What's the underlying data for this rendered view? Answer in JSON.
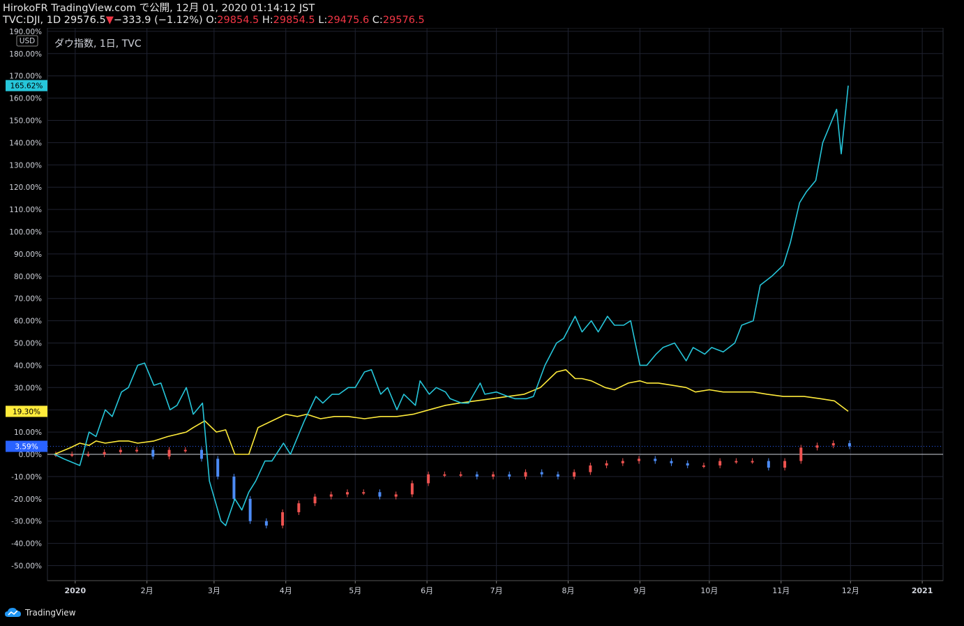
{
  "header": {
    "line1": "HirokoFR TradingView.com で公開, 12月 01, 2020 01:14:12 JST",
    "symbol_line": "TVC:DJI, 1D 29576.5",
    "change_arrow": "▼",
    "change": "−333.9 (−1.12%)",
    "o_label": " O:",
    "o_value": "29854.5",
    "h_label": " H:",
    "h_value": "29854.5",
    "l_label": " L:",
    "l_value": "29475.6",
    "c_label": " C:",
    "c_value": "29576.5"
  },
  "brand": {
    "name": "TradingView",
    "icon": "tradingview-cloud-icon"
  },
  "chart_data": {
    "type": "line",
    "title": "ダウ指数, 1日, TVC",
    "currency": "USD",
    "ylim": [
      -60,
      190
    ],
    "yunit": "%",
    "yticks": [
      190,
      180,
      170,
      160,
      150,
      140,
      130,
      120,
      110,
      100,
      90,
      80,
      70,
      60,
      50,
      40,
      30,
      20,
      10,
      0,
      -10,
      -20,
      -30,
      -40,
      -50
    ],
    "ytick_labels": [
      "190.00%",
      "180.00%",
      "170.00%",
      "160.00%",
      "150.00%",
      "140.00%",
      "130.00%",
      "120.00%",
      "110.00%",
      "100.00%",
      "90.00%",
      "80.00%",
      "70.00%",
      "60.00%",
      "50.00%",
      "40.00%",
      "30.00%",
      "20.00%",
      "10.00%",
      "0.00%",
      "-10.00%",
      "-20.00%",
      "-30.00%",
      "-40.00%",
      "-50.00%"
    ],
    "xlim": [
      "2019-12-20",
      "2021-01-10"
    ],
    "xticks": [
      {
        "date": "2020-01-01",
        "label": "2020"
      },
      {
        "date": "2020-02-01",
        "label": "2月"
      },
      {
        "date": "2020-03-01",
        "label": "3月"
      },
      {
        "date": "2020-04-01",
        "label": "4月"
      },
      {
        "date": "2020-05-01",
        "label": "5月"
      },
      {
        "date": "2020-06-01",
        "label": "6月"
      },
      {
        "date": "2020-07-01",
        "label": "7月"
      },
      {
        "date": "2020-08-01",
        "label": "8月"
      },
      {
        "date": "2020-09-01",
        "label": "9月"
      },
      {
        "date": "2020-10-01",
        "label": "10月"
      },
      {
        "date": "2020-11-01",
        "label": "11月"
      },
      {
        "date": "2020-12-01",
        "label": "12月"
      },
      {
        "date": "2021-01-01",
        "label": "2021"
      }
    ],
    "grid": true,
    "zero_line": true,
    "price_labels": [
      {
        "value": 165.62,
        "label": "165.62%",
        "color": "#26c6da"
      },
      {
        "value": 19.3,
        "label": "19.30%",
        "color": "#ffeb3b"
      },
      {
        "value": 3.59,
        "label": "3.59%",
        "color": "#2962ff"
      }
    ],
    "series": [
      {
        "type": "line",
        "color": "#26c6da",
        "x": [
          "2019-12-23",
          "2019-12-27",
          "2020-01-03",
          "2020-01-07",
          "2020-01-10",
          "2020-01-14",
          "2020-01-17",
          "2020-01-21",
          "2020-01-24",
          "2020-01-28",
          "2020-01-31",
          "2020-02-04",
          "2020-02-07",
          "2020-02-11",
          "2020-02-14",
          "2020-02-18",
          "2020-02-21",
          "2020-02-25",
          "2020-02-28",
          "2020-03-04",
          "2020-03-06",
          "2020-03-10",
          "2020-03-13",
          "2020-03-16",
          "2020-03-19",
          "2020-03-23",
          "2020-03-26",
          "2020-03-31",
          "2020-04-03",
          "2020-04-07",
          "2020-04-09",
          "2020-04-14",
          "2020-04-17",
          "2020-04-21",
          "2020-04-24",
          "2020-04-28",
          "2020-05-01",
          "2020-05-05",
          "2020-05-08",
          "2020-05-12",
          "2020-05-15",
          "2020-05-19",
          "2020-05-22",
          "2020-05-27",
          "2020-05-29",
          "2020-06-02",
          "2020-06-05",
          "2020-06-09",
          "2020-06-11",
          "2020-06-16",
          "2020-06-19",
          "2020-06-24",
          "2020-06-26",
          "2020-07-01",
          "2020-07-06",
          "2020-07-09",
          "2020-07-14",
          "2020-07-17",
          "2020-07-22",
          "2020-07-27",
          "2020-07-30",
          "2020-08-04",
          "2020-08-07",
          "2020-08-11",
          "2020-08-14",
          "2020-08-18",
          "2020-08-21",
          "2020-08-25",
          "2020-08-28",
          "2020-09-01",
          "2020-09-04",
          "2020-09-08",
          "2020-09-11",
          "2020-09-16",
          "2020-09-21",
          "2020-09-24",
          "2020-09-29",
          "2020-10-02",
          "2020-10-07",
          "2020-10-12",
          "2020-10-15",
          "2020-10-20",
          "2020-10-23",
          "2020-10-28",
          "2020-11-02",
          "2020-11-05",
          "2020-11-09",
          "2020-11-12",
          "2020-11-16",
          "2020-11-19",
          "2020-11-23",
          "2020-11-25",
          "2020-11-27",
          "2020-11-30"
        ],
        "y": [
          0,
          -2,
          -5,
          10,
          8,
          20,
          17,
          28,
          30,
          40,
          41,
          31,
          32,
          20,
          22,
          30,
          18,
          23,
          -12,
          -30,
          -32,
          -20,
          -25,
          -17,
          -12,
          -3,
          -3,
          5,
          0,
          10,
          15,
          26,
          23,
          27,
          27,
          30,
          30,
          37,
          38,
          27,
          30,
          20,
          27,
          22,
          33,
          27,
          30,
          28,
          25,
          23,
          23,
          32,
          27,
          28,
          26,
          25,
          25,
          26,
          40,
          50,
          52,
          62,
          55,
          60,
          55,
          62,
          58,
          58,
          60,
          40,
          40,
          45,
          48,
          50,
          42,
          48,
          45,
          48,
          46,
          50,
          58,
          60,
          76,
          80,
          85,
          95,
          113,
          118,
          123,
          140,
          150,
          155,
          135,
          165.62
        ]
      },
      {
        "type": "line",
        "color": "#ffeb3b",
        "x": [
          "2019-12-23",
          "2019-12-30",
          "2020-01-03",
          "2020-01-07",
          "2020-01-10",
          "2020-01-14",
          "2020-01-20",
          "2020-01-24",
          "2020-01-28",
          "2020-02-04",
          "2020-02-10",
          "2020-02-18",
          "2020-02-21",
          "2020-02-26",
          "2020-03-02",
          "2020-03-06",
          "2020-03-10",
          "2020-03-16",
          "2020-03-20",
          "2020-03-26",
          "2020-04-01",
          "2020-04-06",
          "2020-04-10",
          "2020-04-16",
          "2020-04-22",
          "2020-04-28",
          "2020-05-05",
          "2020-05-12",
          "2020-05-19",
          "2020-05-26",
          "2020-06-02",
          "2020-06-09",
          "2020-06-15",
          "2020-06-22",
          "2020-06-29",
          "2020-07-06",
          "2020-07-13",
          "2020-07-20",
          "2020-07-27",
          "2020-07-31",
          "2020-08-04",
          "2020-08-07",
          "2020-08-11",
          "2020-08-17",
          "2020-08-21",
          "2020-08-27",
          "2020-09-01",
          "2020-09-04",
          "2020-09-09",
          "2020-09-15",
          "2020-09-21",
          "2020-09-25",
          "2020-10-01",
          "2020-10-07",
          "2020-10-13",
          "2020-10-20",
          "2020-10-26",
          "2020-11-02",
          "2020-11-06",
          "2020-11-11",
          "2020-11-18",
          "2020-11-24",
          "2020-11-30"
        ],
        "y": [
          0,
          3,
          5,
          4,
          6,
          5,
          6,
          6,
          5,
          6,
          8,
          10,
          12,
          15,
          10,
          11,
          0,
          0,
          12,
          15,
          18,
          17,
          18,
          16,
          17,
          17,
          16,
          17,
          17,
          18,
          20,
          22,
          23,
          24,
          25,
          26,
          27,
          30,
          37,
          38,
          34,
          34,
          33,
          30,
          29,
          32,
          33,
          32,
          32,
          31,
          30,
          28,
          29,
          28,
          28,
          28,
          27,
          26,
          26,
          26,
          25,
          24,
          19.3
        ]
      },
      {
        "type": "candlestick",
        "colors": {
          "up": "#ef5350",
          "down": "#4c8bf5"
        },
        "x": [
          "2019-12-23",
          "2019-12-30",
          "2020-01-06",
          "2020-01-13",
          "2020-01-20",
          "2020-01-27",
          "2020-02-03",
          "2020-02-10",
          "2020-02-17",
          "2020-02-24",
          "2020-03-02",
          "2020-03-09",
          "2020-03-16",
          "2020-03-23",
          "2020-03-30",
          "2020-04-06",
          "2020-04-13",
          "2020-04-20",
          "2020-04-27",
          "2020-05-04",
          "2020-05-11",
          "2020-05-18",
          "2020-05-25",
          "2020-06-01",
          "2020-06-08",
          "2020-06-15",
          "2020-06-22",
          "2020-06-29",
          "2020-07-06",
          "2020-07-13",
          "2020-07-20",
          "2020-07-27",
          "2020-08-03",
          "2020-08-10",
          "2020-08-17",
          "2020-08-24",
          "2020-08-31",
          "2020-09-07",
          "2020-09-14",
          "2020-09-21",
          "2020-09-28",
          "2020-10-05",
          "2020-10-12",
          "2020-10-19",
          "2020-10-26",
          "2020-11-02",
          "2020-11-09",
          "2020-11-16",
          "2020-11-23",
          "2020-11-30"
        ],
        "y": [
          0,
          0,
          0,
          1,
          2,
          2,
          -1,
          2,
          2,
          -2,
          -10,
          -20,
          -30,
          -32,
          -26,
          -22,
          -19,
          -18,
          -17,
          -17,
          -19,
          -18,
          -13,
          -9,
          -9,
          -9,
          -10,
          -9,
          -10,
          -8,
          -9,
          -10,
          -8,
          -5,
          -4,
          -3,
          -2,
          -3,
          -4,
          -5,
          -5,
          -3,
          -3,
          -3,
          -6,
          -3,
          3,
          4,
          5,
          3.59
        ]
      }
    ]
  }
}
